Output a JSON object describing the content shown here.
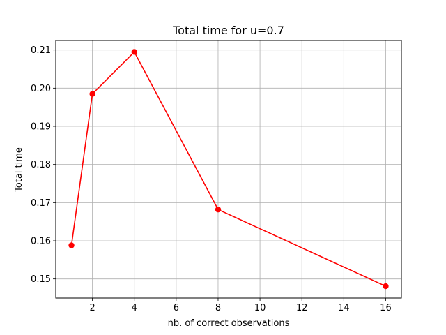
{
  "chart_data": {
    "type": "line",
    "title": "Total time for u=0.7",
    "xlabel": "nb. of correct observations",
    "ylabel": "Total time",
    "xlim": [
      0.25,
      16.75
    ],
    "ylim": [
      0.145,
      0.2125
    ],
    "x_ticks": [
      2,
      4,
      6,
      8,
      10,
      12,
      14,
      16
    ],
    "y_ticks": [
      0.15,
      0.16,
      0.17,
      0.18,
      0.19,
      0.2,
      0.21
    ],
    "y_tick_labels": [
      "0.15",
      "0.16",
      "0.17",
      "0.18",
      "0.19",
      "0.20",
      "0.21"
    ],
    "grid": true,
    "series": [
      {
        "color": "#ff0000",
        "marker": "circle",
        "x": [
          1,
          2,
          4,
          8,
          16
        ],
        "y": [
          0.1588,
          0.1985,
          0.2095,
          0.1682,
          0.1481
        ]
      }
    ]
  }
}
